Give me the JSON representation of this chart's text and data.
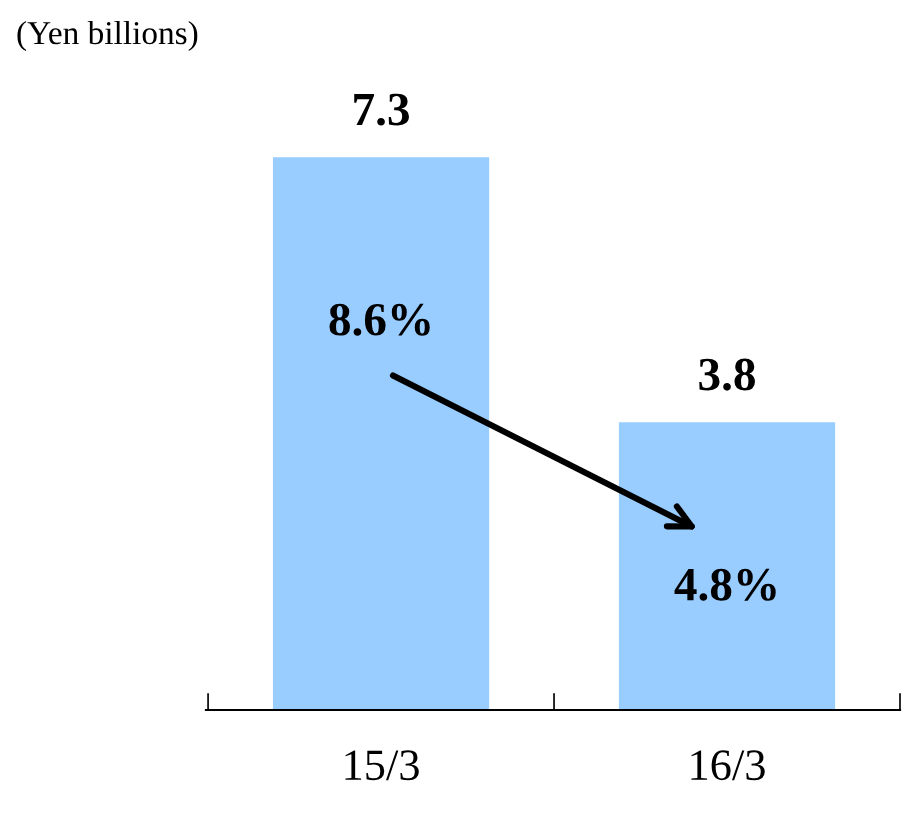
{
  "chart_data": {
    "type": "bar",
    "ylabel": "(Yen billions)",
    "categories": [
      "15/3",
      "16/3"
    ],
    "values": [
      7.3,
      3.8
    ],
    "color": "#99ccff",
    "data_labels": true,
    "annotations": [
      "8.6%",
      "4.8%"
    ]
  }
}
